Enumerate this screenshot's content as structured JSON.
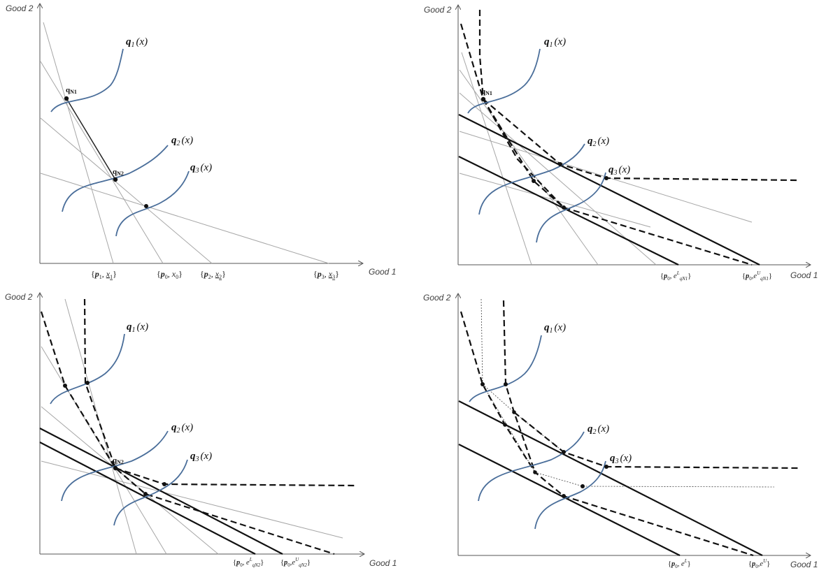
{
  "axes": {
    "x_label": "Good 1",
    "y_label": "Good 2"
  },
  "curves": {
    "q1": "q",
    "q1_sub": "1",
    "q2": "q",
    "q2_sub": "2",
    "q3": "q",
    "q3_sub": "3",
    "arg": "(x)"
  },
  "points": {
    "qN1": "q",
    "qN1_sub": "N1",
    "qN2": "q",
    "qN2_sub": "N2"
  },
  "panel1": {
    "ticks": [
      {
        "p": "p",
        "p_sub": "1",
        "x": "x",
        "x_sub": "1",
        "underline": true
      },
      {
        "p": "p",
        "p_sub": "0",
        "x": "x",
        "x_sub": "0",
        "underline": false
      },
      {
        "p": "p",
        "p_sub": "2",
        "x": "x",
        "x_sub": "2",
        "underline": true
      },
      {
        "p": "p",
        "p_sub": "3",
        "x": "x",
        "x_sub": "3",
        "underline": true
      }
    ]
  },
  "panel2": {
    "tick_a": {
      "p": "p",
      "p_sub": "0",
      "e": "e",
      "e_sup": "L",
      "e_sub": "qN1"
    },
    "tick_b": {
      "p": "p",
      "p_sub": "0",
      "e": "e",
      "e_sup": "U",
      "e_sub": "qN1"
    }
  },
  "panel3": {
    "tick_a": {
      "p": "p",
      "p_sub": "0",
      "e": "e",
      "e_sup": "L",
      "e_sub": "qN2"
    },
    "tick_b": {
      "p": "p",
      "p_sub": "0",
      "e": "e",
      "e_sup": "U",
      "e_sub": "qN2"
    }
  },
  "panel4": {
    "tick_a": {
      "p": "p",
      "p_sub": "0",
      "e": "e",
      "e_sup": "L"
    },
    "tick_b": {
      "p": "p",
      "p_sub": "0",
      "e": "e",
      "e_sup": "U"
    }
  }
}
